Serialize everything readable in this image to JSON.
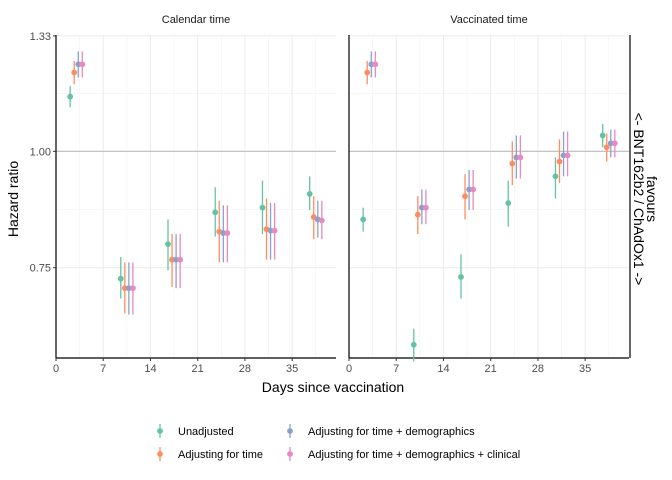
{
  "chart_data": {
    "type": "scatter",
    "panels": [
      {
        "title": "Calendar time"
      },
      {
        "title": "Vaccinated time"
      }
    ],
    "xlabel": "Days since vaccination",
    "ylabel": "Hazard ratio",
    "xticks": [
      0,
      7,
      14,
      21,
      28,
      35
    ],
    "xtick_labels": [
      "0",
      "7",
      "14",
      "21",
      "28",
      "35"
    ],
    "xlim": [
      0,
      41.5
    ],
    "yscale": "log",
    "yticks": [
      0.75,
      1.0,
      1.33
    ],
    "ytick_labels": [
      "0.75",
      "1.00",
      "1.33"
    ],
    "ylim": [
      0.6,
      1.333
    ],
    "reference_line": 1.0,
    "side_label": {
      "line1": "favours",
      "line2": "<- BNT162b2 / ChAdOx1 ->"
    },
    "grid": true,
    "legend_position": "bottom",
    "period_x": [
      3,
      10.5,
      17.5,
      24.5,
      31.5,
      38.5
    ],
    "dodge_offsets": [
      -0.9,
      -0.3,
      0.3,
      0.9
    ],
    "series": [
      {
        "name": "Unadjusted",
        "color": "#66c2a5",
        "values": [
          [
            [
              1.145,
              1.115,
              1.175
            ],
            [
              0.73,
              0.695,
              0.77
            ],
            [
              0.795,
              0.745,
              0.845
            ],
            [
              0.86,
              0.81,
              0.915
            ],
            [
              0.87,
              0.815,
              0.93
            ],
            [
              0.9,
              0.865,
              0.94
            ]
          ],
          [
            [
              0.845,
              0.82,
              0.87
            ],
            [
              0.62,
              0.595,
              0.645
            ],
            [
              0.733,
              0.695,
              0.775
            ],
            [
              0.88,
              0.83,
              0.93
            ],
            [
              0.94,
              0.89,
              0.985
            ],
            [
              1.04,
              1.01,
              1.07
            ]
          ]
        ]
      },
      {
        "name": "Adjusting for time",
        "color": "#fc8d62",
        "values": [
          [
            [
              1.215,
              1.18,
              1.25
            ],
            [
              0.713,
              0.67,
              0.76
            ],
            [
              0.765,
              0.715,
              0.815
            ],
            [
              0.82,
              0.76,
              0.885
            ],
            [
              0.825,
              0.765,
              0.89
            ],
            [
              0.85,
              0.805,
              0.895
            ]
          ],
          [
            [
              1.215,
              1.18,
              1.25
            ],
            [
              0.855,
              0.815,
              0.895
            ],
            [
              0.895,
              0.845,
              0.945
            ],
            [
              0.97,
              0.92,
              1.025
            ],
            [
              0.975,
              0.925,
              1.03
            ],
            [
              1.01,
              0.975,
              1.045
            ]
          ]
        ]
      },
      {
        "name": "Adjusting for time + demographics",
        "color": "#8da0cb",
        "values": [
          [
            [
              1.24,
              1.2,
              1.28
            ],
            [
              0.713,
              0.668,
              0.76
            ],
            [
              0.765,
              0.713,
              0.815
            ],
            [
              0.817,
              0.76,
              0.875
            ],
            [
              0.822,
              0.765,
              0.88
            ],
            [
              0.845,
              0.808,
              0.885
            ]
          ],
          [
            [
              1.24,
              1.2,
              1.28
            ],
            [
              0.87,
              0.835,
              0.91
            ],
            [
              0.91,
              0.865,
              0.955
            ],
            [
              0.985,
              0.935,
              1.04
            ],
            [
              0.99,
              0.94,
              1.05
            ],
            [
              1.02,
              0.985,
              1.055
            ]
          ]
        ]
      },
      {
        "name": "Adjusting for time + demographics + clinical",
        "color": "#e78ac3",
        "values": [
          [
            [
              1.24,
              1.2,
              1.28
            ],
            [
              0.713,
              0.668,
              0.76
            ],
            [
              0.765,
              0.713,
              0.815
            ],
            [
              0.817,
              0.76,
              0.875
            ],
            [
              0.822,
              0.765,
              0.88
            ],
            [
              0.843,
              0.805,
              0.885
            ]
          ],
          [
            [
              1.24,
              1.2,
              1.28
            ],
            [
              0.87,
              0.835,
              0.91
            ],
            [
              0.91,
              0.865,
              0.955
            ],
            [
              0.985,
              0.935,
              1.04
            ],
            [
              0.99,
              0.94,
              1.05
            ],
            [
              1.02,
              0.985,
              1.055
            ]
          ]
        ]
      }
    ]
  }
}
